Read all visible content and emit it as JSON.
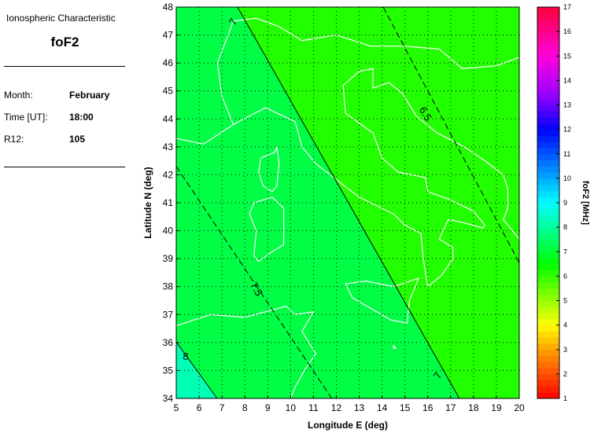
{
  "panel": {
    "subtitle": "Ionospheric Characteristic",
    "title": "foF2",
    "fields": [
      {
        "label": "Month:",
        "value": "February"
      },
      {
        "label": "Time [UT]:",
        "value": "18:00"
      },
      {
        "label": "R12:",
        "value": "105"
      }
    ]
  },
  "map": {
    "xlabel": "Longitude E (deg)",
    "ylabel": "Latitude N (deg)",
    "xlim": [
      5,
      20
    ],
    "ylim": [
      34,
      48
    ],
    "xticks": [
      "5",
      "6",
      "7",
      "8",
      "9",
      "10",
      "11",
      "12",
      "13",
      "14",
      "15",
      "16",
      "17",
      "18",
      "19",
      "20"
    ],
    "yticks": [
      "34",
      "35",
      "36",
      "37",
      "38",
      "39",
      "40",
      "41",
      "42",
      "43",
      "44",
      "45",
      "46",
      "47",
      "48"
    ],
    "grid": true,
    "contours": [
      {
        "level": "8",
        "style": "solid",
        "points": [
          [
            5,
            36.02
          ],
          [
            6.79,
            34
          ]
        ]
      },
      {
        "level": "7.5",
        "style": "dashed",
        "points": [
          [
            5,
            42.3
          ],
          [
            11.8,
            34
          ]
        ]
      },
      {
        "level": "7",
        "style": "solid",
        "points": [
          [
            7.68,
            48
          ],
          [
            17.38,
            34
          ]
        ]
      },
      {
        "level": "6.5",
        "style": "dashed",
        "points": [
          [
            14.05,
            48
          ],
          [
            20,
            38.85
          ]
        ]
      }
    ],
    "region_colors": {
      "above_8": "#00ffb4",
      "7_to_8": "#00ff44",
      "6_to_7": "#22ff00"
    }
  },
  "colorbar": {
    "label": "foF2 [MHz]",
    "range": [
      1,
      17
    ],
    "ticks": [
      "1",
      "2",
      "3",
      "4",
      "5",
      "6",
      "7",
      "8",
      "9",
      "10",
      "11",
      "12",
      "13",
      "14",
      "15",
      "16",
      "17"
    ]
  }
}
